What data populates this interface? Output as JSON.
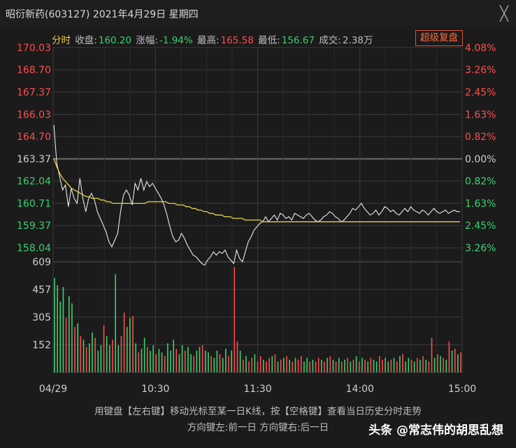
{
  "window": {
    "title": "昭衍新药(603127) 2021年4月29日 星期四",
    "close_glyph": "╳"
  },
  "info": {
    "mode": "分时",
    "close_label": "收盘:",
    "close_value": "160.20",
    "change_label": "涨幅:",
    "change_value": "-1.94%",
    "high_label": "最高:",
    "high_value": "165.58",
    "low_label": "最低:",
    "low_value": "156.67",
    "volume_label": "成交:",
    "volume_value": "2.38万",
    "super_button": "超级复盘"
  },
  "hints": {
    "line1": "用键盘【左右键】移动光标至某一日K线，按【空格键】查看当日历史分时走势",
    "line2": "方向键左:前一日  方向键右:后一日"
  },
  "watermark": "头条 @常志伟的胡思乱想",
  "colors": {
    "up": "#ff4d4d",
    "down": "#3bd16f",
    "price_line": "#e8e8e8",
    "avg_line": "#e6d34a",
    "grid": "#3a3a3a",
    "axis_text": "#cfcfcf"
  },
  "chart_data": {
    "type": "line",
    "title": "",
    "prev_close": 163.37,
    "price_ticks": [
      "170.03",
      "168.70",
      "167.37",
      "166.03",
      "164.70",
      "163.37",
      "162.04",
      "160.71",
      "159.37",
      "158.04"
    ],
    "pct_ticks": [
      "4.08%",
      "3.26%",
      "2.45%",
      "1.63%",
      "0.82%",
      "0.00%",
      "0.82%",
      "1.63%",
      "2.45%",
      "3.26%"
    ],
    "volume_ticks": [
      "609",
      "457",
      "305",
      "152"
    ],
    "time_ticks": [
      "04/29",
      "10:30",
      "11:30",
      "14:00",
      "15:00"
    ],
    "ylim": [
      157.2,
      170.03
    ],
    "volume_max": 609,
    "series": [
      {
        "kind": "price",
        "values": [
          165.4,
          163.1,
          162.3,
          161.5,
          161.8,
          160.5,
          161.6,
          161.0,
          160.7,
          162.2,
          161.0,
          160.2,
          161.0,
          161.3,
          160.9,
          160.2,
          159.8,
          159.4,
          159.0,
          158.4,
          158.1,
          158.5,
          158.9,
          160.2,
          161.2,
          161.5,
          161.2,
          160.6,
          161.9,
          161.5,
          162.2,
          161.5,
          162.0,
          161.7,
          161.9,
          161.6,
          161.3,
          161.0,
          160.6,
          160.0,
          159.3,
          158.7,
          158.4,
          158.5,
          158.9,
          158.6,
          158.2,
          157.9,
          157.6,
          157.5,
          157.3,
          157.1,
          157.0,
          157.3,
          157.5,
          157.8,
          157.6,
          157.8,
          157.7,
          157.9,
          157.5,
          157.3,
          157.1,
          157.9,
          157.4,
          157.2,
          157.8,
          158.4,
          158.7,
          159.1,
          159.3,
          159.5,
          159.6,
          159.9,
          159.6,
          159.8,
          160.0,
          159.7,
          160.1,
          160.0,
          159.8,
          159.9,
          159.7,
          160.1,
          160.0,
          159.9,
          159.8,
          160.0,
          160.1,
          159.9,
          159.7,
          159.6,
          159.7,
          159.9,
          160.0,
          160.2,
          160.1,
          159.9,
          159.8,
          159.6,
          159.7,
          159.9,
          160.1,
          160.4,
          160.3,
          160.5,
          160.7,
          160.4,
          160.2,
          160.0,
          160.1,
          160.3,
          160.0,
          160.2,
          160.5,
          160.4,
          160.2,
          160.3,
          160.1,
          160.0,
          160.2,
          160.4,
          160.2,
          160.5,
          160.3,
          160.2,
          160.1,
          160.3,
          160.2,
          160.0,
          160.2,
          160.4,
          160.2,
          160.1,
          160.2,
          160.3,
          160.1,
          160.2,
          160.3,
          160.2,
          160.2
        ]
      },
      {
        "kind": "average",
        "values": [
          163.4,
          162.9,
          162.5,
          162.2,
          162.0,
          161.8,
          161.6,
          161.5,
          161.4,
          161.3,
          161.2,
          161.1,
          161.1,
          161.0,
          161.0,
          161.0,
          160.9,
          160.9,
          160.8,
          160.8,
          160.7,
          160.7,
          160.7,
          160.7,
          160.7,
          160.7,
          160.7,
          160.7,
          160.7,
          160.7,
          160.7,
          160.7,
          160.8,
          160.8,
          160.8,
          160.8,
          160.8,
          160.8,
          160.8,
          160.7,
          160.7,
          160.7,
          160.6,
          160.6,
          160.6,
          160.5,
          160.5,
          160.4,
          160.4,
          160.3,
          160.3,
          160.2,
          160.2,
          160.1,
          160.1,
          160.0,
          160.0,
          160.0,
          159.9,
          159.9,
          159.9,
          159.8,
          159.8,
          159.8,
          159.8,
          159.7,
          159.7,
          159.7,
          159.7,
          159.7,
          159.7,
          159.6,
          159.6,
          159.6,
          159.6,
          159.6,
          159.6,
          159.6,
          159.6,
          159.6,
          159.6,
          159.6,
          159.6,
          159.6,
          159.6,
          159.6,
          159.6,
          159.6,
          159.6,
          159.6,
          159.6,
          159.6,
          159.6,
          159.6,
          159.6,
          159.6,
          159.6,
          159.6,
          159.6,
          159.6,
          159.6,
          159.6,
          159.6,
          159.6,
          159.6,
          159.6,
          159.6,
          159.6,
          159.6,
          159.6,
          159.6,
          159.6,
          159.6,
          159.6,
          159.6,
          159.6,
          159.6,
          159.6,
          159.6,
          159.6,
          159.6,
          159.6,
          159.6,
          159.6,
          159.6,
          159.6,
          159.6,
          159.6,
          159.6,
          159.6,
          159.6,
          159.6,
          159.6,
          159.6,
          159.6,
          159.6,
          159.6,
          159.6,
          159.6
        ]
      }
    ],
    "volume": {
      "bars": [
        [
          520,
          "d"
        ],
        [
          480,
          "d"
        ],
        [
          390,
          "d"
        ],
        [
          470,
          "d"
        ],
        [
          300,
          "u"
        ],
        [
          420,
          "d"
        ],
        [
          380,
          "d"
        ],
        [
          250,
          "u"
        ],
        [
          270,
          "d"
        ],
        [
          200,
          "u"
        ],
        [
          180,
          "d"
        ],
        [
          140,
          "u"
        ],
        [
          160,
          "d"
        ],
        [
          220,
          "d"
        ],
        [
          190,
          "u"
        ],
        [
          120,
          "d"
        ],
        [
          150,
          "d"
        ],
        [
          260,
          "u"
        ],
        [
          200,
          "d"
        ],
        [
          150,
          "d"
        ],
        [
          180,
          "u"
        ],
        [
          540,
          "d"
        ],
        [
          150,
          "d"
        ],
        [
          200,
          "u"
        ],
        [
          330,
          "u"
        ],
        [
          250,
          "d"
        ],
        [
          300,
          "d"
        ],
        [
          310,
          "u"
        ],
        [
          160,
          "d"
        ],
        [
          110,
          "u"
        ],
        [
          130,
          "d"
        ],
        [
          190,
          "d"
        ],
        [
          140,
          "u"
        ],
        [
          120,
          "d"
        ],
        [
          150,
          "d"
        ],
        [
          100,
          "u"
        ],
        [
          130,
          "d"
        ],
        [
          110,
          "d"
        ],
        [
          90,
          "u"
        ],
        [
          160,
          "d"
        ],
        [
          120,
          "d"
        ],
        [
          180,
          "d"
        ],
        [
          130,
          "u"
        ],
        [
          100,
          "d"
        ],
        [
          150,
          "d"
        ],
        [
          120,
          "u"
        ],
        [
          140,
          "d"
        ],
        [
          100,
          "d"
        ],
        [
          90,
          "u"
        ],
        [
          120,
          "d"
        ],
        [
          140,
          "d"
        ],
        [
          150,
          "u"
        ],
        [
          120,
          "d"
        ],
        [
          110,
          "d"
        ],
        [
          90,
          "u"
        ],
        [
          80,
          "d"
        ],
        [
          120,
          "d"
        ],
        [
          100,
          "u"
        ],
        [
          80,
          "d"
        ],
        [
          130,
          "d"
        ],
        [
          90,
          "u"
        ],
        [
          120,
          "d"
        ],
        [
          580,
          "u"
        ],
        [
          170,
          "u"
        ],
        [
          120,
          "d"
        ],
        [
          70,
          "u"
        ],
        [
          90,
          "d"
        ],
        [
          60,
          "u"
        ],
        [
          80,
          "u"
        ],
        [
          100,
          "d"
        ],
        [
          60,
          "u"
        ],
        [
          90,
          "u"
        ],
        [
          70,
          "d"
        ],
        [
          60,
          "u"
        ],
        [
          80,
          "u"
        ],
        [
          90,
          "d"
        ],
        [
          100,
          "u"
        ],
        [
          60,
          "d"
        ],
        [
          70,
          "u"
        ],
        [
          80,
          "d"
        ],
        [
          90,
          "u"
        ],
        [
          70,
          "d"
        ],
        [
          60,
          "u"
        ],
        [
          80,
          "d"
        ],
        [
          70,
          "u"
        ],
        [
          90,
          "u"
        ],
        [
          60,
          "d"
        ],
        [
          80,
          "d"
        ],
        [
          60,
          "u"
        ],
        [
          70,
          "d"
        ],
        [
          60,
          "u"
        ],
        [
          80,
          "u"
        ],
        [
          70,
          "d"
        ],
        [
          60,
          "u"
        ],
        [
          80,
          "d"
        ],
        [
          90,
          "u"
        ],
        [
          70,
          "d"
        ],
        [
          60,
          "u"
        ],
        [
          80,
          "d"
        ],
        [
          60,
          "u"
        ],
        [
          70,
          "d"
        ],
        [
          80,
          "u"
        ],
        [
          60,
          "d"
        ],
        [
          70,
          "u"
        ],
        [
          90,
          "d"
        ],
        [
          60,
          "u"
        ],
        [
          80,
          "d"
        ],
        [
          70,
          "u"
        ],
        [
          60,
          "d"
        ],
        [
          80,
          "u"
        ],
        [
          70,
          "d"
        ],
        [
          60,
          "d"
        ],
        [
          90,
          "u"
        ],
        [
          70,
          "u"
        ],
        [
          80,
          "d"
        ],
        [
          60,
          "d"
        ],
        [
          70,
          "u"
        ],
        [
          80,
          "d"
        ],
        [
          60,
          "u"
        ],
        [
          90,
          "d"
        ],
        [
          100,
          "u"
        ],
        [
          60,
          "d"
        ],
        [
          80,
          "d"
        ],
        [
          70,
          "u"
        ],
        [
          60,
          "d"
        ],
        [
          80,
          "u"
        ],
        [
          70,
          "d"
        ],
        [
          90,
          "u"
        ],
        [
          70,
          "d"
        ],
        [
          60,
          "u"
        ],
        [
          190,
          "u"
        ],
        [
          80,
          "d"
        ],
        [
          100,
          "u"
        ],
        [
          90,
          "d"
        ],
        [
          80,
          "u"
        ],
        [
          70,
          "d"
        ],
        [
          170,
          "u"
        ],
        [
          120,
          "d"
        ],
        [
          130,
          "u"
        ],
        [
          100,
          "d"
        ],
        [
          110,
          "u"
        ]
      ]
    }
  }
}
